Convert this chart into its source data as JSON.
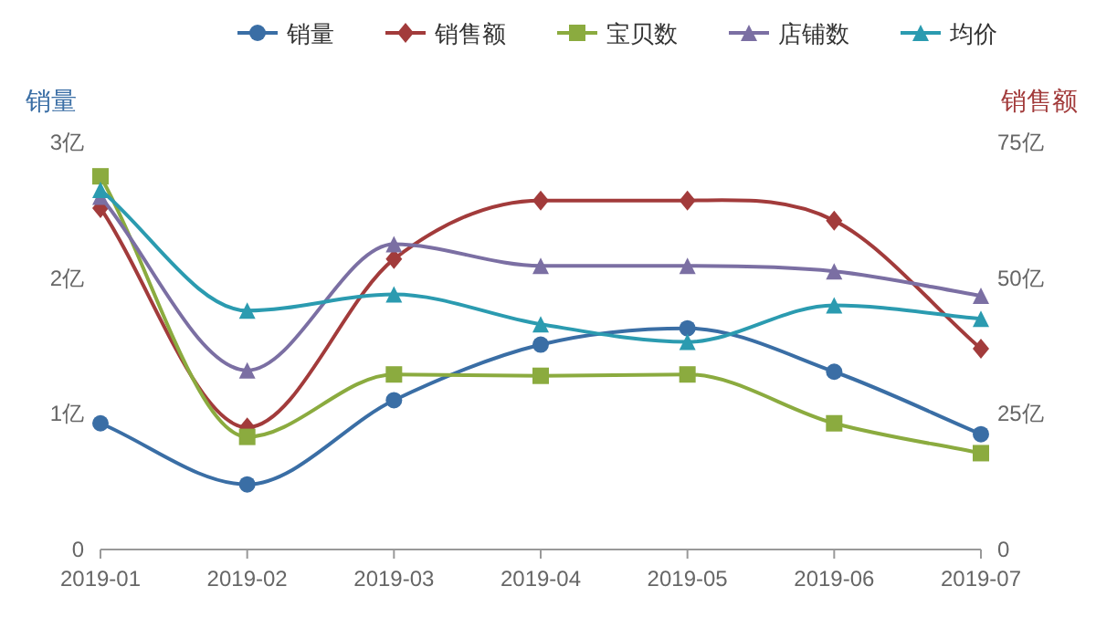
{
  "chart_data": {
    "type": "line",
    "categories": [
      "2019-01",
      "2019-02",
      "2019-03",
      "2019-04",
      "2019-05",
      "2019-06",
      "2019-07"
    ],
    "ylabel": "销量",
    "y2label": "销售额",
    "ylim": [
      0,
      3
    ],
    "yticks": [
      0,
      {
        "value": 1,
        "label": "1亿"
      },
      {
        "value": 2,
        "label": "2亿"
      },
      {
        "value": 3,
        "label": "3亿"
      }
    ],
    "y2lim": [
      0,
      75
    ],
    "y2ticks": [
      0,
      {
        "value": 25,
        "label": "25亿"
      },
      {
        "value": 50,
        "label": "50亿"
      },
      {
        "value": 75,
        "label": "75亿"
      }
    ],
    "legend": "top",
    "grid": false,
    "line_style": "solid",
    "series": [
      {
        "name": "销量",
        "color": "#3a6ea5",
        "marker": "circle",
        "values": [
          0.93,
          0.48,
          1.1,
          1.51,
          1.63,
          1.31,
          0.85
        ]
      },
      {
        "name": "销售额",
        "color": "#a23b3b",
        "marker": "diamond",
        "axis": "y2",
        "values": [
          62.9,
          22.5,
          53.5,
          64.3,
          64.3,
          60.6,
          37
        ]
      },
      {
        "name": "宝贝数",
        "color": "#8bab3f",
        "marker": "square",
        "values": [
          2.75,
          0.83,
          1.29,
          1.28,
          1.29,
          0.93,
          0.71
        ]
      },
      {
        "name": "店铺数",
        "color": "#7b6fa3",
        "marker": "triangle",
        "values": [
          2.6,
          1.32,
          2.25,
          2.09,
          2.09,
          2.05,
          1.87
        ]
      },
      {
        "name": "均价",
        "color": "#2b9bb0",
        "marker": "triangle",
        "values": [
          2.65,
          1.76,
          1.88,
          1.66,
          1.53,
          1.8,
          1.7
        ]
      }
    ]
  }
}
